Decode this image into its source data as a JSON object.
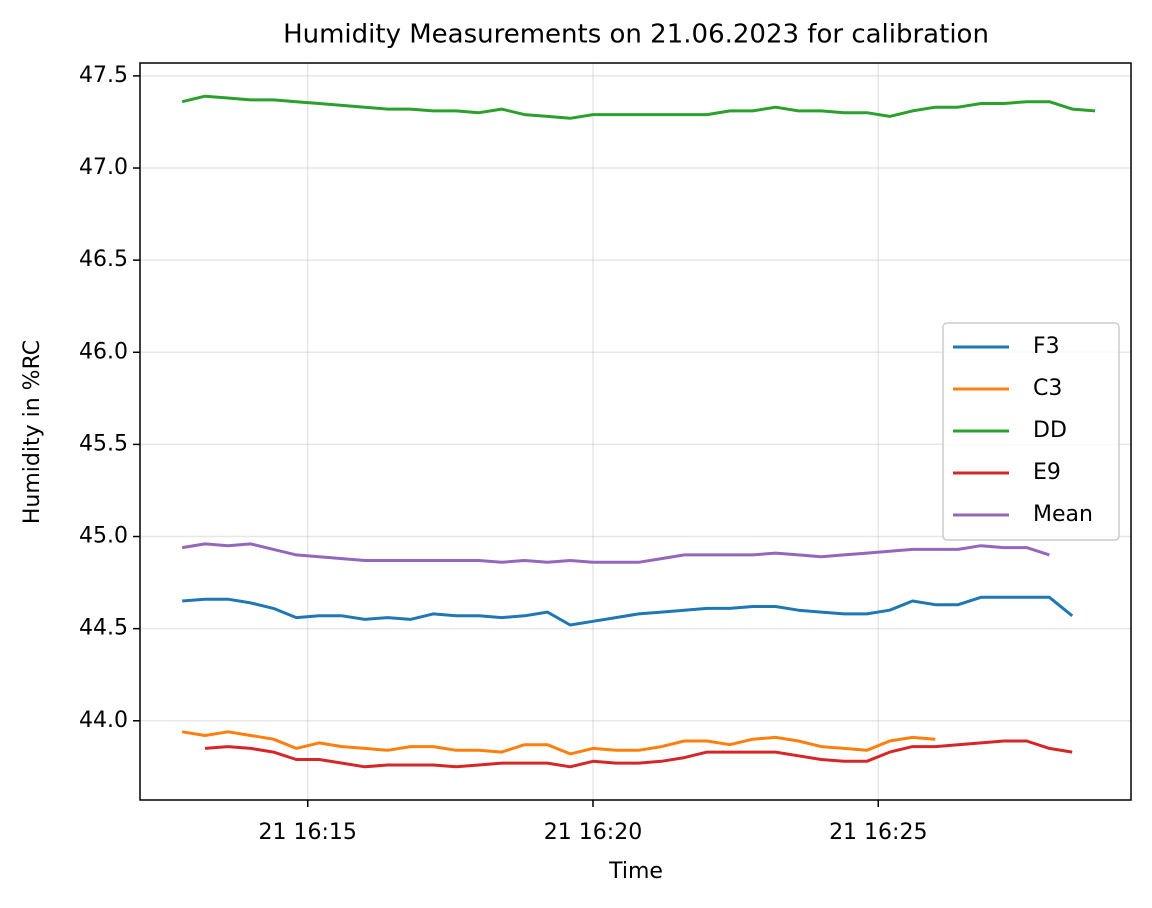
{
  "chart_data": {
    "type": "line",
    "title": "Humidity Measurements on 21.06.2023 for calibration",
    "x_label": "Time",
    "y_label": "Humidity in %RC",
    "x": [
      12.8,
      13.2,
      13.6,
      14.0,
      14.4,
      14.8,
      15.2,
      15.6,
      16.0,
      16.4,
      16.8,
      17.2,
      17.6,
      18.0,
      18.4,
      18.8,
      19.2,
      19.6,
      20.0,
      20.4,
      20.8,
      21.2,
      21.6,
      22.0,
      22.4,
      22.8,
      23.2,
      23.6,
      24.0,
      24.4,
      24.8,
      25.2,
      25.6,
      26.0,
      26.4,
      26.8,
      27.2,
      27.6,
      28.0,
      28.4,
      28.8
    ],
    "series": [
      {
        "name": "F3",
        "color": "#1f77b4",
        "values": [
          44.65,
          44.66,
          44.66,
          44.64,
          44.61,
          44.56,
          44.57,
          44.57,
          44.55,
          44.56,
          44.55,
          44.58,
          44.57,
          44.57,
          44.56,
          44.57,
          44.59,
          44.52,
          44.54,
          44.56,
          44.58,
          44.59,
          44.6,
          44.61,
          44.61,
          44.62,
          44.62,
          44.6,
          44.59,
          44.58,
          44.58,
          44.6,
          44.65,
          44.63,
          44.63,
          44.67,
          44.67,
          44.67,
          44.67,
          44.57,
          null
        ]
      },
      {
        "name": "C3",
        "color": "#ff7f0e",
        "values": [
          43.94,
          43.92,
          43.94,
          43.92,
          43.9,
          43.85,
          43.88,
          43.86,
          43.85,
          43.84,
          43.86,
          43.86,
          43.84,
          43.84,
          43.83,
          43.87,
          43.87,
          43.82,
          43.85,
          43.84,
          43.84,
          43.86,
          43.89,
          43.89,
          43.87,
          43.9,
          43.91,
          43.89,
          43.86,
          43.85,
          43.84,
          43.89,
          43.91,
          43.9,
          null,
          null,
          null,
          null,
          null,
          null,
          null
        ]
      },
      {
        "name": "DD",
        "color": "#2ca02c",
        "values": [
          47.36,
          47.39,
          47.38,
          47.37,
          47.37,
          47.36,
          47.35,
          47.34,
          47.33,
          47.32,
          47.32,
          47.31,
          47.31,
          47.3,
          47.32,
          47.29,
          47.28,
          47.27,
          47.29,
          47.29,
          47.29,
          47.29,
          47.29,
          47.29,
          47.31,
          47.31,
          47.33,
          47.31,
          47.31,
          47.3,
          47.3,
          47.28,
          47.31,
          47.33,
          47.33,
          47.35,
          47.35,
          47.36,
          47.36,
          47.32,
          47.31
        ]
      },
      {
        "name": "E9",
        "color": "#d62728",
        "values": [
          null,
          43.85,
          43.86,
          43.85,
          43.83,
          43.79,
          43.79,
          43.77,
          43.75,
          43.76,
          43.76,
          43.76,
          43.75,
          43.76,
          43.77,
          43.77,
          43.77,
          43.75,
          43.78,
          43.77,
          43.77,
          43.78,
          43.8,
          43.83,
          43.83,
          43.83,
          43.83,
          43.81,
          43.79,
          43.78,
          43.78,
          43.83,
          43.86,
          43.86,
          43.87,
          43.88,
          43.89,
          43.89,
          43.85,
          43.83,
          null
        ]
      },
      {
        "name": "Mean",
        "color": "#9467bd",
        "values": [
          44.94,
          44.96,
          44.95,
          44.96,
          44.93,
          44.9,
          44.89,
          44.88,
          44.87,
          44.87,
          44.87,
          44.87,
          44.87,
          44.87,
          44.86,
          44.87,
          44.86,
          44.87,
          44.86,
          44.86,
          44.86,
          44.88,
          44.9,
          44.9,
          44.9,
          44.9,
          44.91,
          44.9,
          44.89,
          44.9,
          44.91,
          44.92,
          44.93,
          44.93,
          44.93,
          44.95,
          44.94,
          44.94,
          44.9,
          null,
          null
        ]
      }
    ],
    "xlim": [
      12.06,
      29.43
    ],
    "xticks": [
      {
        "value": 15,
        "label": "21 16:15"
      },
      {
        "value": 20,
        "label": "21 16:20"
      },
      {
        "value": 25,
        "label": "21 16:25"
      }
    ],
    "ylim": [
      43.57,
      47.57
    ],
    "yticks": [
      {
        "value": 44,
        "label": "44.0"
      },
      44.5,
      {
        "value": 45,
        "label": "45.0"
      },
      45.5,
      {
        "value": 46,
        "label": "46.0"
      },
      46.5,
      {
        "value": 47,
        "label": "47.0"
      },
      47.5
    ],
    "grid": true,
    "legend": "center right"
  }
}
